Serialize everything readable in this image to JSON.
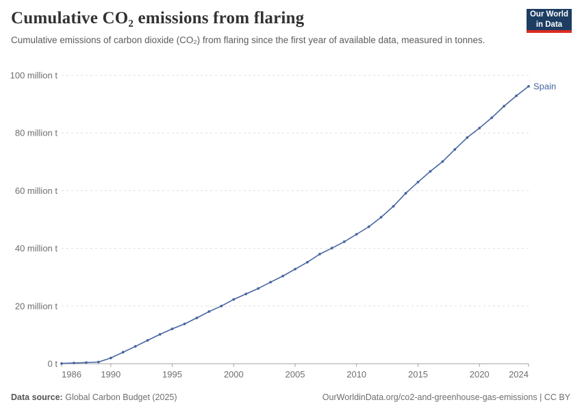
{
  "header": {
    "title": "Cumulative CO₂ emissions from flaring",
    "subtitle": "Cumulative emissions of carbon dioxide (CO₂) from flaring since the first year of available data, measured in tonnes.",
    "logo": {
      "line1": "Our World",
      "line2": "in Data",
      "bg_color": "#1d3d63",
      "accent_color": "#dc2a20"
    }
  },
  "chart_data": {
    "type": "line",
    "title": "Cumulative CO₂ emissions from flaring",
    "unit": "million tonnes",
    "xlim": [
      1986,
      2024
    ],
    "ylim": [
      0,
      100
    ],
    "grid": "horizontal-dashed",
    "legend_position": "end-of-line-label",
    "x_ticks": [
      1986,
      1990,
      1995,
      2000,
      2005,
      2010,
      2015,
      2020,
      2024
    ],
    "x_tick_labels": [
      "1986",
      "1990",
      "1995",
      "2000",
      "2005",
      "2010",
      "2015",
      "2020",
      "2024"
    ],
    "y_ticks": [
      0,
      20,
      40,
      60,
      80,
      100
    ],
    "y_tick_labels": [
      "0 t",
      "20 million t",
      "40 million t",
      "60 million t",
      "80 million t",
      "100 million t"
    ],
    "series": [
      {
        "name": "Spain",
        "color": "#4665a0",
        "x": [
          1986,
          1987,
          1988,
          1989,
          1990,
          1991,
          1992,
          1993,
          1994,
          1995,
          1996,
          1997,
          1998,
          1999,
          2000,
          2001,
          2002,
          2003,
          2004,
          2005,
          2006,
          2007,
          2008,
          2009,
          2010,
          2011,
          2012,
          2013,
          2014,
          2015,
          2016,
          2017,
          2018,
          2019,
          2020,
          2021,
          2022,
          2023,
          2024
        ],
        "y": [
          0.1,
          0.25,
          0.4,
          0.6,
          2.0,
          4.0,
          6.0,
          8.1,
          10.2,
          12.1,
          13.8,
          15.9,
          18.1,
          20.0,
          22.3,
          24.2,
          26.1,
          28.3,
          30.4,
          32.8,
          35.2,
          38.0,
          40.1,
          42.3,
          44.9,
          47.5,
          50.8,
          54.6,
          59.1,
          63.0,
          66.7,
          70.1,
          74.3,
          78.4,
          81.7,
          85.3,
          89.3,
          92.9,
          96.2
        ]
      }
    ]
  },
  "footer": {
    "source_label": "Data source:",
    "source_value": "Global Carbon Budget (2025)",
    "citation": "OurWorldinData.org/co2-and-greenhouse-gas-emissions | CC BY"
  }
}
